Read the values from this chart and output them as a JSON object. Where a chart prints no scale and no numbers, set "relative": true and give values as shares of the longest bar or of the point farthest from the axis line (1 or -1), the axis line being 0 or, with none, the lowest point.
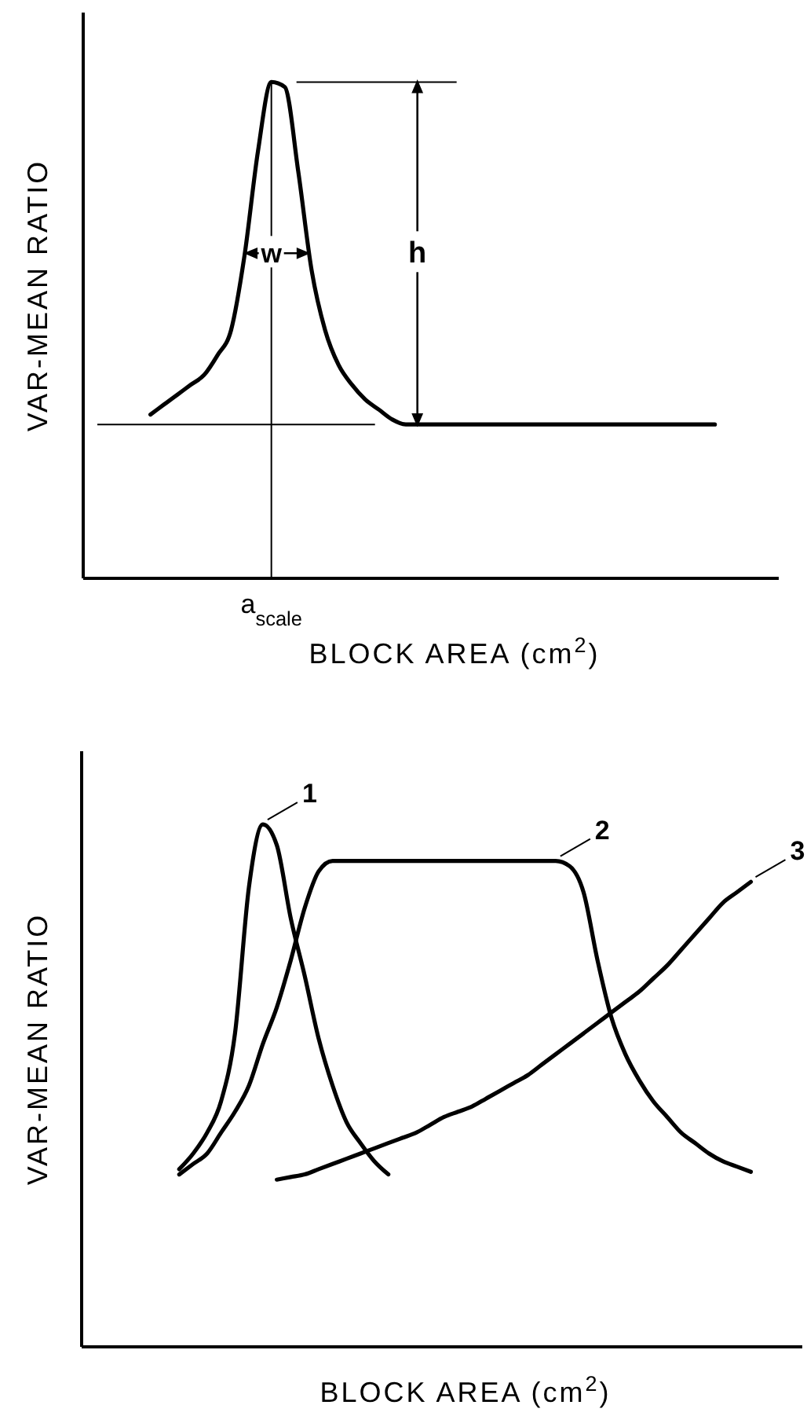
{
  "chart_data": [
    {
      "type": "line",
      "ylabel": "VAR-MEAN RATIO",
      "xlabel": "BLOCK AREA (cm$^{2}$)",
      "relative": true,
      "categories": [
        null,
        null,
        null,
        null,
        null,
        null,
        null,
        null,
        null,
        null,
        null,
        null,
        null,
        null,
        null,
        null,
        null,
        null,
        null,
        null,
        null,
        null,
        null,
        null,
        null,
        null,
        null,
        null,
        null,
        null,
        null,
        null,
        null,
        null,
        null,
        null,
        null,
        null,
        null,
        null,
        null,
        null,
        null,
        null,
        null,
        null,
        null,
        null,
        null,
        null,
        null
      ],
      "series": [
        {
          "color": "#000000",
          "values": [
            null,
            null,
            null,
            null,
            null,
            0.33,
            0.35,
            0.37,
            0.39,
            0.41,
            0.45,
            0.5,
            0.65,
            0.86,
            1.0,
            0.99,
            0.82,
            0.62,
            0.5,
            0.43,
            0.39,
            0.36,
            0.34,
            0.32,
            0.31,
            0.31,
            0.31,
            0.31,
            0.31,
            0.31,
            0.31,
            0.31,
            0.31,
            0.31,
            0.31,
            0.31,
            0.31,
            0.31,
            0.31,
            0.31,
            0.31,
            0.31,
            0.31,
            0.31,
            0.31,
            0.31,
            0.31,
            0.31,
            null,
            null,
            null
          ]
        }
      ],
      "annotations": [
        "w",
        "h",
        "a$_{scale}$"
      ]
    },
    {
      "type": "line",
      "ylabel": "VAR-MEAN RATIO",
      "xlabel": "BLOCK AREA (cm$^{2}$)",
      "relative": true,
      "legend": "top right",
      "categories": [
        null,
        null,
        null,
        null,
        null,
        null,
        null,
        null,
        null,
        null,
        null,
        null,
        null,
        null,
        null,
        null,
        null,
        null,
        null,
        null,
        null,
        null,
        null,
        null,
        null,
        null,
        null,
        null,
        null,
        null,
        null,
        null,
        null,
        null,
        null,
        null,
        null,
        null,
        null,
        null,
        null,
        null,
        null,
        null,
        null,
        null,
        null,
        null,
        null,
        null,
        null
      ],
      "series": [
        {
          "name": "1",
          "color": "#000000",
          "values": [
            null,
            null,
            null,
            null,
            null,
            null,
            null,
            0.34,
            0.37,
            0.41,
            0.47,
            0.6,
            0.88,
            1.0,
            0.96,
            0.82,
            0.71,
            0.59,
            0.5,
            0.43,
            0.39,
            0.355,
            0.33,
            null,
            null,
            null,
            null,
            null,
            null,
            null,
            null,
            null,
            null,
            null,
            null,
            null,
            null,
            null,
            null,
            null,
            null,
            null,
            null,
            null,
            null,
            null,
            null,
            null,
            null,
            null,
            null
          ]
        },
        {
          "name": "2",
          "color": "#000000",
          "values": [
            null,
            null,
            null,
            null,
            null,
            null,
            null,
            0.33,
            0.35,
            0.37,
            0.41,
            0.45,
            0.5,
            0.58,
            0.65,
            0.74,
            0.84,
            0.91,
            0.93,
            0.93,
            0.93,
            0.93,
            0.93,
            0.93,
            0.93,
            0.93,
            0.93,
            0.93,
            0.93,
            0.93,
            0.93,
            0.93,
            0.93,
            0.93,
            0.93,
            0.92,
            0.87,
            0.74,
            0.63,
            0.56,
            0.51,
            0.47,
            0.44,
            0.41,
            0.39,
            0.37,
            0.355,
            0.345,
            0.335,
            null,
            null
          ]
        },
        {
          "name": "3",
          "color": "#000000",
          "values": [
            null,
            null,
            null,
            null,
            null,
            null,
            null,
            null,
            null,
            null,
            null,
            null,
            null,
            null,
            0.32,
            0.325,
            0.33,
            0.34,
            0.35,
            0.36,
            0.37,
            0.38,
            0.39,
            0.4,
            0.41,
            0.425,
            0.44,
            0.45,
            0.46,
            0.475,
            0.49,
            0.505,
            0.52,
            0.54,
            0.56,
            0.58,
            0.6,
            0.62,
            0.64,
            0.66,
            0.68,
            0.705,
            0.73,
            0.76,
            0.79,
            0.82,
            0.85,
            0.87,
            0.89,
            null,
            null
          ]
        }
      ]
    }
  ]
}
